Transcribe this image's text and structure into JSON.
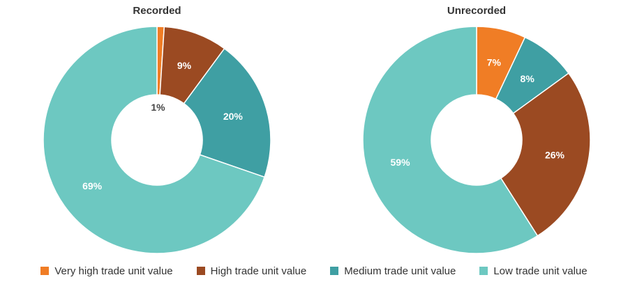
{
  "chart_data": [
    {
      "type": "pie",
      "variant": "donut",
      "title": "Recorded",
      "categories": [
        "Very high trade unit value",
        "High trade unit value",
        "Medium trade unit value",
        "Low trade unit value"
      ],
      "values": [
        1,
        9,
        20,
        69
      ],
      "data_labels": [
        "1%",
        "9%",
        "20%",
        "69%"
      ]
    },
    {
      "type": "pie",
      "variant": "donut",
      "title": "Unrecorded",
      "categories": [
        "Very high trade unit value",
        "High trade unit value",
        "Medium trade unit value",
        "Low trade unit value"
      ],
      "values": [
        7,
        26,
        8,
        59
      ],
      "data_labels": [
        "7%",
        "26%",
        "8%",
        "59%"
      ]
    }
  ],
  "slice_order": {
    "Recorded": [
      "Very high trade unit value",
      "High trade unit value",
      "Medium trade unit value",
      "Low trade unit value"
    ],
    "Unrecorded": [
      "Very high trade unit value",
      "Medium trade unit value",
      "High trade unit value",
      "Low trade unit value"
    ]
  },
  "legend": {
    "placement": "bottom",
    "items": [
      {
        "label": "Very high trade unit value",
        "color": "#f07d25"
      },
      {
        "label": "High trade unit value",
        "color": "#9b4a22"
      },
      {
        "label": "Medium trade unit value",
        "color": "#3f9fa3"
      },
      {
        "label": "Low trade unit value",
        "color": "#6dc8c1"
      }
    ]
  },
  "colors": {
    "Very high trade unit value": "#f07d25",
    "High trade unit value": "#9b4a22",
    "Medium trade unit value": "#3f9fa3",
    "Low trade unit value": "#6dc8c1"
  }
}
